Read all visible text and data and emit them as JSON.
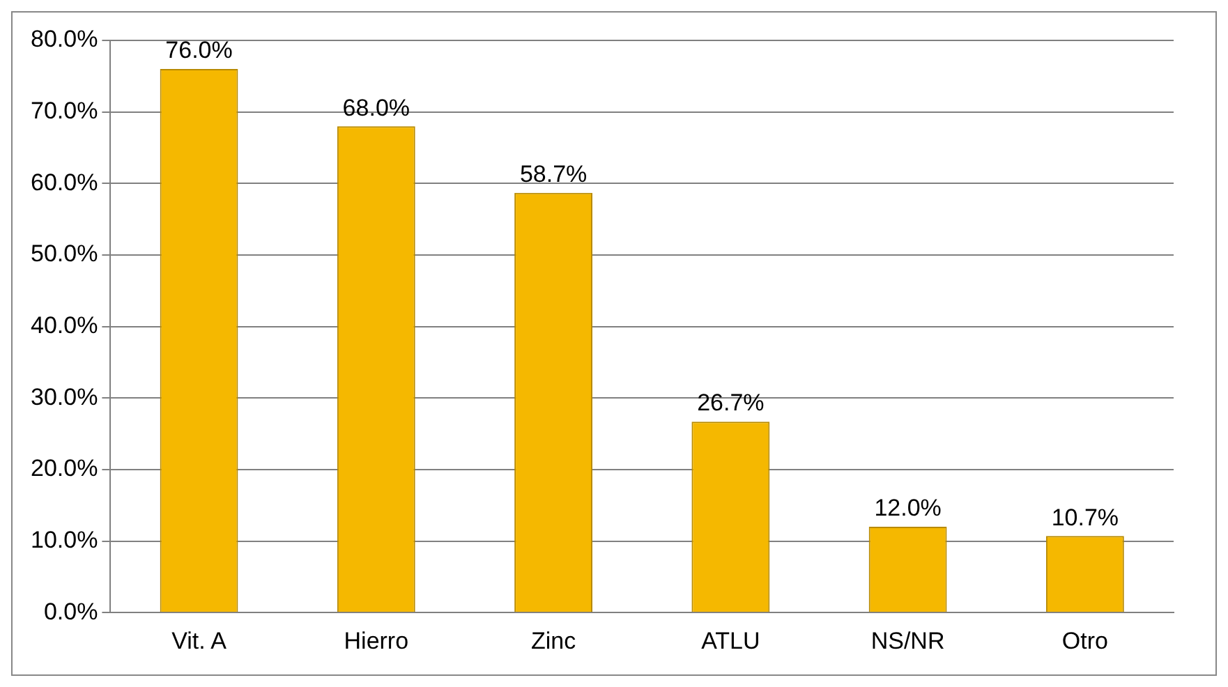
{
  "chart_data": {
    "type": "bar",
    "categories": [
      "Vit. A",
      "Hierro",
      "Zinc",
      "ATLU",
      "NS/NR",
      "Otro"
    ],
    "values": [
      76.0,
      68.0,
      58.7,
      26.7,
      12.0,
      10.7
    ],
    "value_labels": [
      "76.0%",
      "68.0%",
      "58.7%",
      "26.7%",
      "12.0%",
      "10.7%"
    ],
    "color": "#f5b800",
    "ylim": [
      0,
      80
    ],
    "yticks": [
      {
        "value": 0,
        "label": "0.0%"
      },
      {
        "value": 10,
        "label": "10.0%"
      },
      {
        "value": 20,
        "label": "20.0%"
      },
      {
        "value": 30,
        "label": "30.0%"
      },
      {
        "value": 40,
        "label": "40.0%"
      },
      {
        "value": 50,
        "label": "50.0%"
      },
      {
        "value": 60,
        "label": "60.0%"
      },
      {
        "value": 70,
        "label": "70.0%"
      },
      {
        "value": 80,
        "label": "80.0%"
      }
    ],
    "grid": "y",
    "legend": false
  }
}
